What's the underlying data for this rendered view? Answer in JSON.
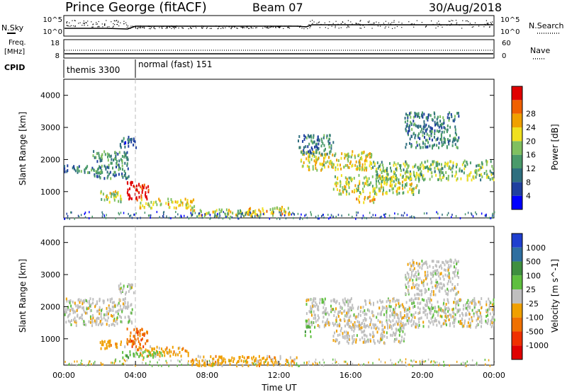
{
  "header": {
    "site": "Prince George (fitACF)",
    "beam": "Beam 07",
    "date": "30/Aug/2018"
  },
  "top_panels": {
    "nsky_label": "N.Sky",
    "nsearch_label": "N.Search",
    "noise_ticks": [
      "10^5",
      "10^0"
    ],
    "freq_label_1": "Freq.",
    "freq_label_2": "[MHz]",
    "freq_ticks": [
      "18",
      "8"
    ],
    "nave_label": "Nave",
    "nave_ticks": [
      "60",
      "0"
    ],
    "cpid_label": "CPID",
    "cpid_segments": [
      "themis 3300",
      "normal (fast) 151"
    ]
  },
  "colors": {
    "power_scale": [
      "#0000ff",
      "#1f3f9f",
      "#2f6f7f",
      "#4a9a6a",
      "#80c060",
      "#f0e020",
      "#f0a000",
      "#f06000",
      "#e00000"
    ],
    "velocity_scale": [
      "#1f3fcf",
      "#2f6fa0",
      "#3f8f3f",
      "#5fbf3f",
      "#bfbfbf",
      "#f0a000",
      "#f07000",
      "#f03000",
      "#e00000"
    ],
    "ground_scatter": "#bfbfbf"
  },
  "chart_data": [
    {
      "type": "heatmap",
      "title": "Power",
      "xlabel": "Time UT",
      "ylabel": "Slant Range [km]",
      "x_ticks": [
        "00:00",
        "04:00",
        "08:00",
        "12:00",
        "16:00",
        "20:00",
        "00:00"
      ],
      "y_ticks": [
        1000,
        2000,
        3000,
        4000
      ],
      "xlim_hours": [
        0,
        24
      ],
      "ylim_km": [
        180,
        4500
      ],
      "colorbar_label": "Power [dB]",
      "colorbar_ticks": [
        4,
        8,
        12,
        16,
        20,
        24,
        28
      ],
      "features": [
        {
          "t0": 0.0,
          "t1": 2.2,
          "r0": 1600,
          "r1": 1850,
          "level": 0.3
        },
        {
          "t0": 1.6,
          "t1": 3.6,
          "r0": 1450,
          "r1": 2300,
          "level": 0.35
        },
        {
          "t0": 3.0,
          "t1": 4.0,
          "r0": 2400,
          "r1": 2750,
          "level": 0.25
        },
        {
          "t0": 2.0,
          "t1": 3.2,
          "r0": 700,
          "r1": 1050,
          "level": 0.55
        },
        {
          "t0": 3.5,
          "t1": 4.7,
          "r0": 780,
          "r1": 1350,
          "level": 0.97
        },
        {
          "t0": 4.2,
          "t1": 7.3,
          "r0": 520,
          "r1": 820,
          "level": 0.62
        },
        {
          "t0": 7.0,
          "t1": 11.0,
          "r0": 250,
          "r1": 480,
          "level": 0.55
        },
        {
          "t0": 10.2,
          "t1": 12.6,
          "r0": 300,
          "r1": 560,
          "level": 0.66
        },
        {
          "t0": 13.2,
          "t1": 17.2,
          "r0": 1700,
          "r1": 2300,
          "level": 0.6
        },
        {
          "t0": 15.0,
          "t1": 19.8,
          "r0": 950,
          "r1": 1550,
          "level": 0.55
        },
        {
          "t0": 17.2,
          "t1": 24.0,
          "r0": 1400,
          "r1": 2000,
          "level": 0.48
        },
        {
          "t0": 16.2,
          "t1": 17.4,
          "r0": 700,
          "r1": 900,
          "level": 0.7
        },
        {
          "t0": 13.0,
          "t1": 15.0,
          "r0": 2200,
          "r1": 2800,
          "level": 0.3
        },
        {
          "t0": 19.0,
          "t1": 22.0,
          "r0": 2400,
          "r1": 3500,
          "level": 0.3
        }
      ]
    },
    {
      "type": "heatmap",
      "title": "Velocity",
      "xlabel": "Time UT",
      "ylabel": "Slant Range [km]",
      "x_ticks": [
        "00:00",
        "04:00",
        "08:00",
        "12:00",
        "16:00",
        "20:00",
        "00:00"
      ],
      "y_ticks": [
        1000,
        2000,
        3000,
        4000
      ],
      "xlim_hours": [
        0,
        24
      ],
      "ylim_km": [
        180,
        4500
      ],
      "colorbar_label": "Velocity [m s^-1]",
      "colorbar_ticks": [
        1000,
        500,
        100,
        25,
        -25,
        -100,
        -500,
        -1000
      ],
      "features": [
        {
          "t0": 0.0,
          "t1": 3.8,
          "r0": 1450,
          "r1": 2300,
          "color_index": 4
        },
        {
          "t0": 3.0,
          "t1": 4.0,
          "r0": 2400,
          "r1": 2750,
          "color_index": 4
        },
        {
          "t0": 2.0,
          "t1": 3.5,
          "r0": 700,
          "r1": 1000,
          "color_index": 5
        },
        {
          "t0": 3.5,
          "t1": 4.7,
          "r0": 750,
          "r1": 1350,
          "color_index": 6
        },
        {
          "t0": 4.0,
          "t1": 7.0,
          "r0": 500,
          "r1": 800,
          "color_index": 5
        },
        {
          "t0": 3.2,
          "t1": 5.5,
          "r0": 450,
          "r1": 650,
          "color_index": 3
        },
        {
          "t0": 7.0,
          "t1": 13.0,
          "r0": 200,
          "r1": 500,
          "color_index": 5
        },
        {
          "t0": 13.4,
          "t1": 13.9,
          "r0": 1100,
          "r1": 1600,
          "color_index": 3
        },
        {
          "t0": 13.5,
          "t1": 24.0,
          "r0": 1400,
          "r1": 2300,
          "color_index": 4
        },
        {
          "t0": 15.0,
          "t1": 19.0,
          "r0": 900,
          "r1": 1500,
          "color_index": 4
        },
        {
          "t0": 19.0,
          "t1": 22.0,
          "r0": 2400,
          "r1": 3500,
          "color_index": 4
        }
      ]
    }
  ]
}
